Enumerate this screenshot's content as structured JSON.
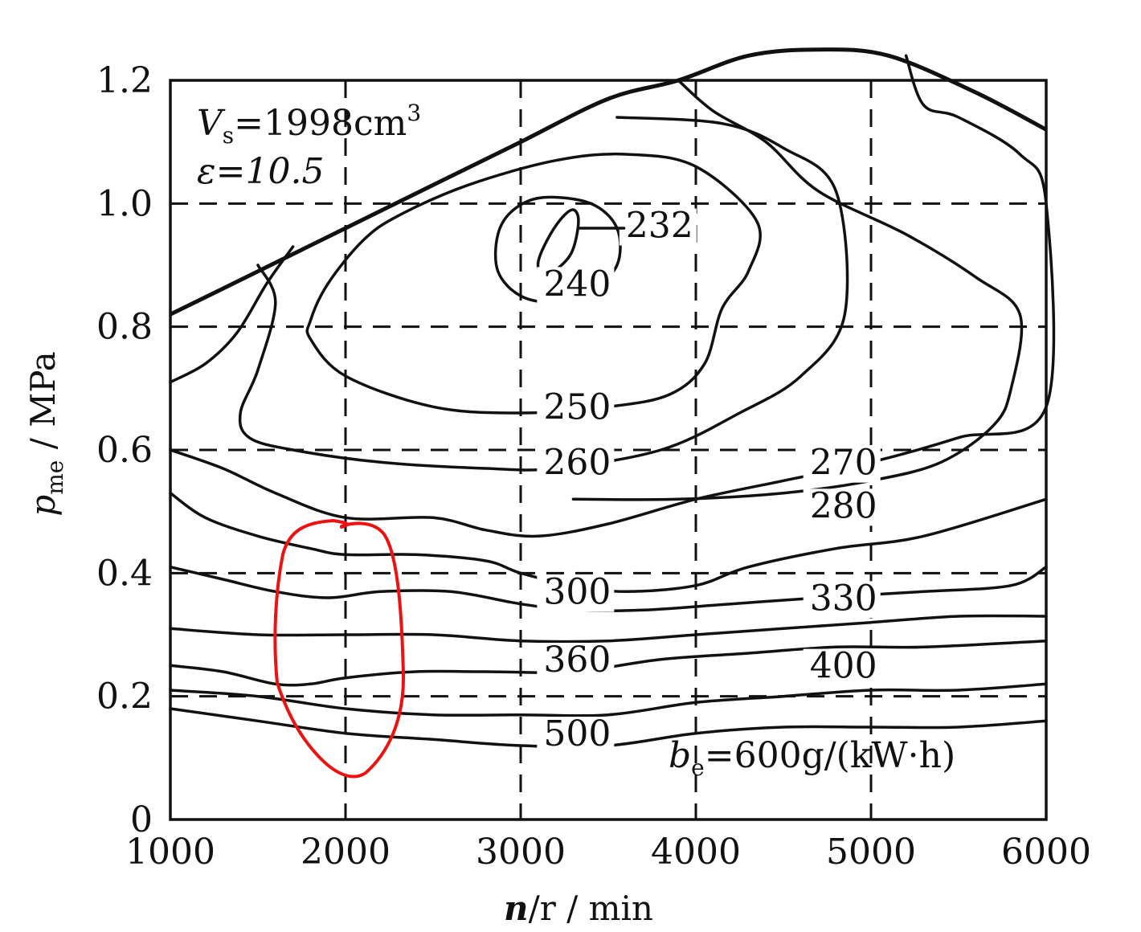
{
  "chart_data": {
    "type": "contour",
    "xlabel_symbol": "n",
    "xlabel_unit": "/r / min",
    "ylabel_symbol": "p",
    "ylabel_sub": "me",
    "ylabel_unit": " / MPa",
    "x_ticks": [
      "1000",
      "2000",
      "3000",
      "4000",
      "5000",
      "6000"
    ],
    "y_ticks": [
      "0",
      "0.2",
      "0.4",
      "0.6",
      "0.8",
      "1.0",
      "1.2"
    ],
    "xlim": [
      1000,
      6000
    ],
    "ylim": [
      0,
      1.2
    ],
    "grid": "dashed",
    "annotation_vs_sym": "V",
    "annotation_vs_sub": "s",
    "annotation_vs_val": "=1998cm",
    "annotation_vs_sup": "3",
    "annotation_eps": "ε=10.5",
    "be_sym": "b",
    "be_sub": "e",
    "be_val": "=600g/(kW·h)",
    "contour_labels": [
      "232",
      "240",
      "250",
      "260",
      "270",
      "280",
      "300",
      "330",
      "360",
      "400",
      "500"
    ],
    "full_load_curve": [
      [
        1000,
        0.82
      ],
      [
        1500,
        0.89
      ],
      [
        2000,
        0.96
      ],
      [
        2500,
        1.03
      ],
      [
        3000,
        1.1
      ],
      [
        3500,
        1.17
      ],
      [
        3900,
        1.2
      ],
      [
        4300,
        1.24
      ],
      [
        4700,
        1.25
      ],
      [
        5100,
        1.24
      ],
      [
        5600,
        1.18
      ],
      [
        6000,
        1.12
      ]
    ],
    "contours": [
      {
        "level": "232",
        "closed": true,
        "points": [
          [
            3100,
            0.905
          ],
          [
            3150,
            0.94
          ],
          [
            3230,
            0.975
          ],
          [
            3300,
            0.99
          ],
          [
            3330,
            0.97
          ],
          [
            3290,
            0.92
          ],
          [
            3190,
            0.89
          ],
          [
            3120,
            0.885
          ]
        ]
      },
      {
        "level": "240",
        "closed": true,
        "points": [
          [
            2870,
            0.95
          ],
          [
            2960,
            0.99
          ],
          [
            3130,
            1.01
          ],
          [
            3400,
            1.0
          ],
          [
            3550,
            0.96
          ],
          [
            3550,
            0.9
          ],
          [
            3400,
            0.86
          ],
          [
            3200,
            0.84
          ],
          [
            3000,
            0.85
          ],
          [
            2870,
            0.89
          ]
        ]
      },
      {
        "level": "250",
        "closed": true,
        "points": [
          [
            1800,
            0.81
          ],
          [
            1900,
            0.87
          ],
          [
            2100,
            0.94
          ],
          [
            2300,
            0.98
          ],
          [
            2700,
            1.03
          ],
          [
            3200,
            1.07
          ],
          [
            3600,
            1.08
          ],
          [
            4000,
            1.06
          ],
          [
            4350,
            0.97
          ],
          [
            4300,
            0.89
          ],
          [
            4150,
            0.83
          ],
          [
            4050,
            0.74
          ],
          [
            3850,
            0.69
          ],
          [
            3500,
            0.67
          ],
          [
            3000,
            0.66
          ],
          [
            2500,
            0.67
          ],
          [
            2000,
            0.72
          ],
          [
            1800,
            0.78
          ]
        ]
      },
      {
        "level": "260",
        "open": true,
        "points": [
          [
            1500,
            0.9
          ],
          [
            1600,
            0.84
          ],
          [
            1500,
            0.73
          ],
          [
            1400,
            0.66
          ],
          [
            1450,
            0.62
          ],
          [
            1700,
            0.6
          ],
          [
            2200,
            0.58
          ],
          [
            2800,
            0.57
          ],
          [
            3200,
            0.57
          ],
          [
            3800,
            0.6
          ],
          [
            4250,
            0.66
          ],
          [
            4600,
            0.72
          ],
          [
            4850,
            0.82
          ],
          [
            4800,
            1.02
          ],
          [
            4500,
            1.09
          ],
          [
            4150,
            1.13
          ],
          [
            3550,
            1.14
          ]
        ]
      },
      {
        "level": "270",
        "open": true,
        "points": [
          [
            1000,
            0.71
          ],
          [
            1200,
            0.74
          ],
          [
            1380,
            0.79
          ],
          [
            1550,
            0.87
          ],
          [
            1700,
            0.93
          ]
        ],
        "points2": [
          [
            3900,
            1.2
          ],
          [
            4100,
            1.15
          ],
          [
            4400,
            1.1
          ],
          [
            4700,
            1.02
          ],
          [
            5200,
            0.95
          ],
          [
            5600,
            0.88
          ],
          [
            5850,
            0.82
          ],
          [
            5800,
            0.7
          ],
          [
            5700,
            0.64
          ],
          [
            5400,
            0.58
          ],
          [
            5000,
            0.55
          ],
          [
            4500,
            0.53
          ],
          [
            3900,
            0.52
          ],
          [
            3300,
            0.52
          ]
        ]
      },
      {
        "level": "280",
        "open": true,
        "points": [
          [
            1000,
            0.6
          ],
          [
            1300,
            0.57
          ],
          [
            1600,
            0.53
          ],
          [
            2000,
            0.49
          ],
          [
            2500,
            0.49
          ],
          [
            2800,
            0.47
          ],
          [
            3100,
            0.46
          ],
          [
            3500,
            0.48
          ],
          [
            4000,
            0.52
          ],
          [
            4500,
            0.55
          ],
          [
            5000,
            0.58
          ],
          [
            5500,
            0.62
          ],
          [
            6000,
            0.67
          ],
          [
            6000,
            1.0
          ],
          [
            5850,
            1.08
          ],
          [
            5500,
            1.14
          ],
          [
            5300,
            1.16
          ],
          [
            5200,
            1.24
          ]
        ]
      },
      {
        "level": "300",
        "open": true,
        "points": [
          [
            1000,
            0.53
          ],
          [
            1200,
            0.49
          ],
          [
            1500,
            0.46
          ],
          [
            1800,
            0.44
          ],
          [
            2000,
            0.43
          ],
          [
            2400,
            0.43
          ],
          [
            2800,
            0.42
          ],
          [
            3000,
            0.4
          ],
          [
            3300,
            0.38
          ],
          [
            3600,
            0.37
          ],
          [
            4000,
            0.38
          ],
          [
            4300,
            0.41
          ],
          [
            4800,
            0.44
          ],
          [
            5300,
            0.46
          ],
          [
            6000,
            0.52
          ]
        ]
      },
      {
        "level": "330",
        "open": true,
        "points": [
          [
            1000,
            0.41
          ],
          [
            1300,
            0.39
          ],
          [
            1600,
            0.37
          ],
          [
            1900,
            0.36
          ],
          [
            2200,
            0.37
          ],
          [
            2600,
            0.37
          ],
          [
            3000,
            0.35
          ],
          [
            3300,
            0.34
          ],
          [
            3700,
            0.34
          ],
          [
            4200,
            0.35
          ],
          [
            4700,
            0.36
          ],
          [
            5300,
            0.37
          ],
          [
            5800,
            0.38
          ],
          [
            6000,
            0.41
          ]
        ]
      },
      {
        "level": "360",
        "open": true,
        "points": [
          [
            1000,
            0.31
          ],
          [
            1500,
            0.3
          ],
          [
            2000,
            0.3
          ],
          [
            2500,
            0.3
          ],
          [
            3000,
            0.29
          ],
          [
            3500,
            0.29
          ],
          [
            4000,
            0.3
          ],
          [
            4500,
            0.31
          ],
          [
            5000,
            0.32
          ],
          [
            5500,
            0.33
          ],
          [
            6000,
            0.33
          ]
        ]
      },
      {
        "level": "400",
        "open": true,
        "points": [
          [
            1000,
            0.25
          ],
          [
            1300,
            0.24
          ],
          [
            1600,
            0.22
          ],
          [
            1800,
            0.22
          ],
          [
            2000,
            0.23
          ],
          [
            2400,
            0.24
          ],
          [
            2800,
            0.24
          ],
          [
            3300,
            0.24
          ],
          [
            3800,
            0.26
          ],
          [
            4300,
            0.27
          ],
          [
            4800,
            0.28
          ],
          [
            5300,
            0.28
          ],
          [
            6000,
            0.29
          ]
        ]
      },
      {
        "level": "500",
        "open": true,
        "points": [
          [
            1000,
            0.21
          ],
          [
            1500,
            0.2
          ],
          [
            2000,
            0.18
          ],
          [
            2500,
            0.17
          ],
          [
            3000,
            0.17
          ],
          [
            3500,
            0.17
          ],
          [
            4000,
            0.19
          ],
          [
            4500,
            0.2
          ],
          [
            5000,
            0.21
          ],
          [
            5500,
            0.21
          ],
          [
            6000,
            0.22
          ]
        ]
      },
      {
        "level": "600",
        "open": true,
        "points": [
          [
            1000,
            0.18
          ],
          [
            1500,
            0.16
          ],
          [
            2000,
            0.14
          ],
          [
            2500,
            0.13
          ],
          [
            3000,
            0.12
          ],
          [
            3500,
            0.12
          ],
          [
            4000,
            0.14
          ],
          [
            4500,
            0.15
          ],
          [
            5000,
            0.15
          ],
          [
            5500,
            0.15
          ],
          [
            6000,
            0.16
          ]
        ]
      }
    ],
    "label_positions": [
      {
        "level": "232",
        "x": 3600,
        "y": 0.945
      },
      {
        "level": "240",
        "x": 3130,
        "y": 0.85
      },
      {
        "level": "250",
        "x": 3130,
        "y": 0.65
      },
      {
        "level": "260",
        "x": 3130,
        "y": 0.56
      },
      {
        "level": "270",
        "x": 4650,
        "y": 0.56
      },
      {
        "level": "280",
        "x": 4650,
        "y": 0.49
      },
      {
        "level": "300",
        "x": 3130,
        "y": 0.35
      },
      {
        "level": "330",
        "x": 4650,
        "y": 0.34
      },
      {
        "level": "360",
        "x": 3130,
        "y": 0.24
      },
      {
        "level": "400",
        "x": 4650,
        "y": 0.23
      },
      {
        "level": "500",
        "x": 3130,
        "y": 0.12
      }
    ]
  }
}
